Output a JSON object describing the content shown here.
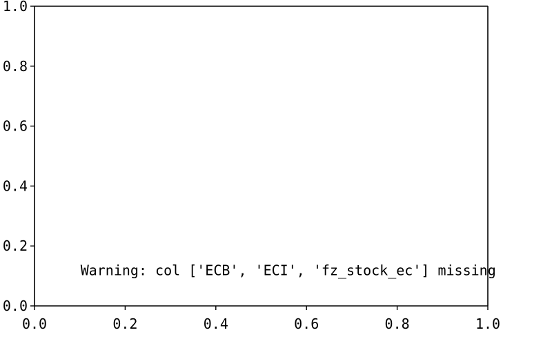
{
  "chart_data": {
    "type": "scatter",
    "title": "",
    "xlabel": "",
    "ylabel": "",
    "xlim": [
      0.0,
      1.0
    ],
    "ylim": [
      0.0,
      1.0
    ],
    "grid": false,
    "x_ticks": [
      0.0,
      0.2,
      0.4,
      0.6,
      0.8,
      1.0
    ],
    "x_tick_labels": [
      "0.0",
      "0.2",
      "0.4",
      "0.6",
      "0.8",
      "1.0"
    ],
    "y_ticks": [
      0.0,
      0.2,
      0.4,
      0.6,
      0.8,
      1.0
    ],
    "y_tick_labels": [
      "0.0",
      "0.2",
      "0.4",
      "0.6",
      "0.8",
      "1.0"
    ],
    "series": [],
    "annotations": [
      {
        "text": "Warning: col ['ECB', 'ECI', 'fz_stock_ec'] missing",
        "x": 0.1,
        "y": 0.1
      }
    ]
  }
}
